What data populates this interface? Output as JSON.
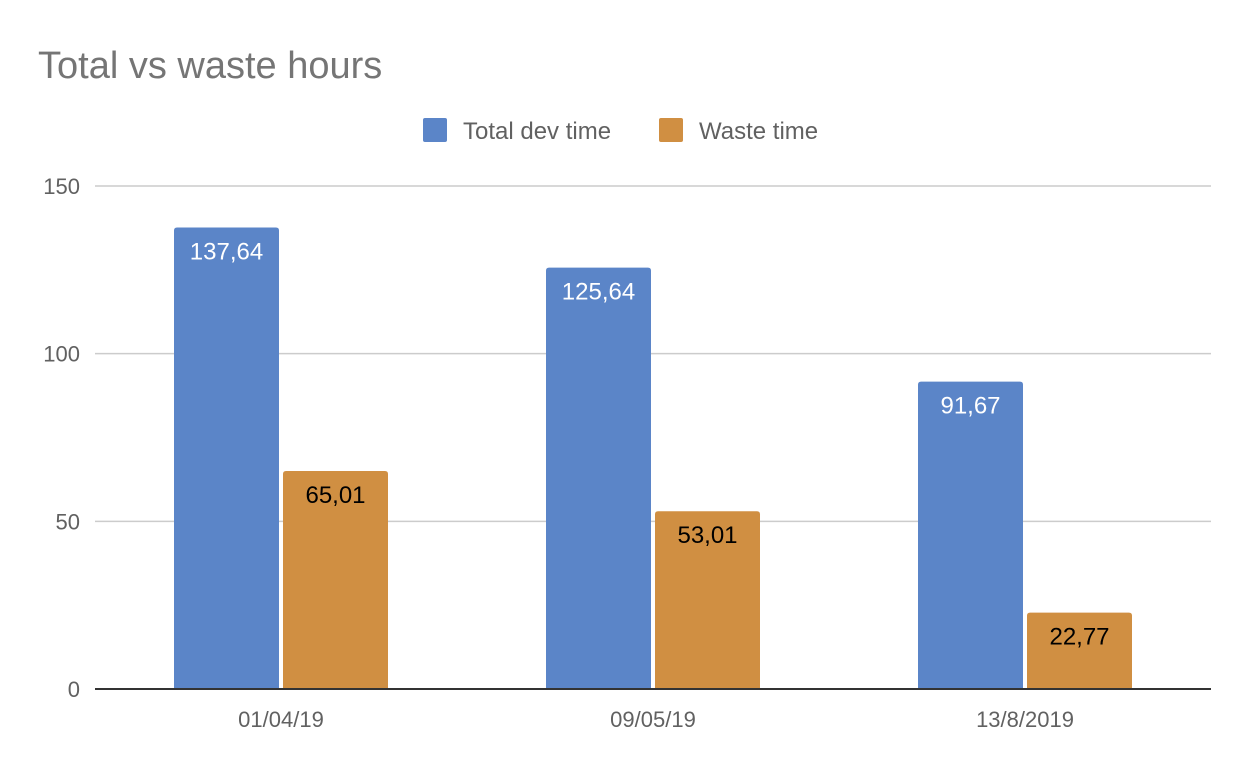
{
  "chart_data": {
    "type": "bar",
    "title": "Total vs waste hours",
    "categories": [
      "01/04/19",
      "09/05/19",
      "13/8/2019"
    ],
    "series": [
      {
        "name": "Total dev time",
        "color": "#5b85c8",
        "label_color": "#ffffff",
        "values": [
          137.64,
          125.64,
          91.67
        ],
        "labels": [
          "137,64",
          "125,64",
          "91,67"
        ]
      },
      {
        "name": "Waste time",
        "color": "#d08f42",
        "label_color": "#000000",
        "values": [
          65.01,
          53.01,
          22.77
        ],
        "labels": [
          "65,01",
          "53,01",
          "22,77"
        ]
      }
    ],
    "ylim": [
      0,
      150
    ],
    "yticks": [
      0,
      50,
      100,
      150
    ],
    "grid": true,
    "legend": "top-center"
  }
}
